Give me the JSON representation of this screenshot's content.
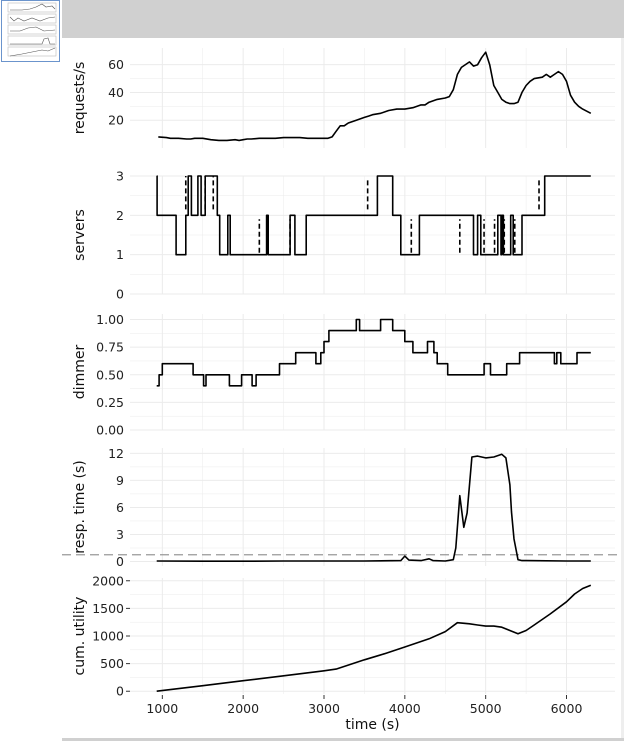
{
  "chart_data": [
    {
      "type": "line",
      "ylabel": "requests/s",
      "xlim": [
        600,
        6600
      ],
      "ylim": [
        0,
        72
      ],
      "yticks": [
        20,
        40,
        60
      ],
      "grid": true,
      "series": [
        {
          "step": false,
          "x": [
            950,
            1050,
            1100,
            1200,
            1300,
            1350,
            1400,
            1500,
            1600,
            1700,
            1800,
            1900,
            1950,
            2000,
            2050,
            2100,
            2200,
            2300,
            2400,
            2500,
            2600,
            2700,
            2800,
            2900,
            3000,
            3050,
            3100,
            3150,
            3200,
            3250,
            3300,
            3400,
            3500,
            3550,
            3600,
            3700,
            3800,
            3900,
            4000,
            4100,
            4200,
            4250,
            4300,
            4400,
            4500,
            4550,
            4600,
            4650,
            4700,
            4800,
            4850,
            4900,
            4950,
            5000,
            5050,
            5100,
            5150,
            5200,
            5250,
            5300,
            5350,
            5400,
            5450,
            5500,
            5550,
            5600,
            5700,
            5750,
            5800,
            5850,
            5900,
            5950,
            6000,
            6050,
            6100,
            6150,
            6200,
            6300
          ],
          "y": [
            8,
            7.5,
            7,
            7,
            6.5,
            6.5,
            7,
            7,
            6,
            5.5,
            5.5,
            6,
            5.5,
            6,
            6.5,
            6.5,
            7,
            7,
            7,
            7.5,
            7.5,
            7.5,
            7,
            7,
            7,
            7,
            8,
            12,
            16,
            16,
            18,
            20,
            22,
            23,
            24,
            25,
            27,
            28,
            28,
            29,
            31,
            31,
            33,
            35,
            36,
            37,
            42,
            53,
            58,
            62,
            59,
            60,
            65,
            69,
            60,
            45,
            40,
            35,
            33,
            32,
            32,
            33,
            40,
            45,
            48,
            50,
            51,
            53,
            51,
            53,
            55,
            53,
            48,
            38,
            33,
            30,
            28,
            25
          ]
        }
      ]
    },
    {
      "type": "line",
      "ylabel": "servers",
      "xlim": [
        600,
        6600
      ],
      "ylim": [
        0,
        3
      ],
      "yticks": [
        0,
        1,
        2,
        3
      ],
      "grid": true,
      "series": [
        {
          "step": true,
          "dash": false,
          "x": [
            930,
            935,
            1090,
            1170,
            1280,
            1290,
            1320,
            1360,
            1440,
            1480,
            1530,
            1680,
            1710,
            1810,
            1840,
            2010,
            2290,
            2310,
            2540,
            2580,
            2640,
            2730,
            2780,
            3620,
            3660,
            3820,
            3850,
            3920,
            3950,
            4150,
            4180,
            4800,
            4850,
            4900,
            4940,
            5100,
            5150,
            5190,
            5200,
            5220,
            5310,
            5340,
            5400,
            5450,
            5700,
            5730,
            6300
          ],
          "y": [
            3,
            2,
            2,
            1,
            1,
            2,
            3,
            2,
            3,
            2,
            3,
            2,
            1,
            2,
            1,
            1,
            2,
            1,
            1,
            2,
            1,
            1,
            2,
            2,
            3,
            3,
            2,
            2,
            1,
            1,
            2,
            2,
            1,
            2,
            1,
            1,
            2,
            1,
            2,
            1,
            2,
            1,
            1,
            2,
            2,
            3,
            3
          ]
        },
        {
          "step": false,
          "dash": true,
          "segments": [
            [
              1290,
              2.15,
              1290,
              3
            ],
            [
              1530,
              2.15,
              1530,
              3
            ],
            [
              1630,
              2.15,
              1630,
              3
            ],
            [
              2200,
              1.05,
              2200,
              1.9
            ],
            [
              2300,
              1.05,
              2300,
              1.9
            ],
            [
              2580,
              1.05,
              2580,
              1.9
            ],
            [
              3540,
              2.15,
              3540,
              2.9
            ],
            [
              4080,
              1.05,
              4080,
              1.9
            ],
            [
              4680,
              1.05,
              4680,
              1.9
            ],
            [
              4980,
              1.05,
              4980,
              1.9
            ],
            [
              5110,
              1.05,
              5110,
              1.9
            ],
            [
              5230,
              1.05,
              5230,
              1.9
            ],
            [
              5360,
              1.05,
              5360,
              1.9
            ],
            [
              5660,
              2.15,
              5660,
              2.9
            ]
          ]
        }
      ]
    },
    {
      "type": "line",
      "ylabel": "dimmer",
      "xlim": [
        600,
        6600
      ],
      "ylim": [
        0,
        1.05
      ],
      "yticks": [
        "0.00",
        "0.25",
        "0.50",
        "0.75",
        "1.00"
      ],
      "grid": true,
      "series": [
        {
          "step": true,
          "x": [
            930,
            960,
            1000,
            1100,
            1380,
            1510,
            1540,
            1800,
            1830,
            1980,
            2110,
            2160,
            2310,
            2450,
            2620,
            2650,
            2900,
            2930,
            2960,
            3000,
            3060,
            3400,
            3440,
            3560,
            3700,
            3730,
            3850,
            3920,
            4000,
            4050,
            4100,
            4240,
            4280,
            4360,
            4400,
            4530,
            4550,
            4940,
            4980,
            5060,
            5260,
            5300,
            5420,
            5730,
            5850,
            5880,
            5930,
            6130,
            6170,
            6200,
            6260,
            6300
          ],
          "y": [
            0.4,
            0.5,
            0.6,
            0.6,
            0.5,
            0.4,
            0.5,
            0.5,
            0.4,
            0.5,
            0.4,
            0.5,
            0.5,
            0.6,
            0.6,
            0.7,
            0.6,
            0.6,
            0.7,
            0.8,
            0.9,
            1.0,
            0.9,
            0.9,
            1.0,
            1.0,
            0.9,
            0.9,
            0.8,
            0.8,
            0.7,
            0.7,
            0.8,
            0.7,
            0.6,
            0.5,
            0.5,
            0.5,
            0.6,
            0.5,
            0.6,
            0.6,
            0.7,
            0.7,
            0.6,
            0.7,
            0.6,
            0.7,
            0.7,
            0.7,
            0.7,
            0.7
          ]
        }
      ]
    },
    {
      "type": "line",
      "ylabel": "resp. time (s)",
      "xlim": [
        600,
        6600
      ],
      "ylim": [
        -0.5,
        12.6
      ],
      "yticks": [
        0,
        3,
        6,
        9,
        12
      ],
      "grid": true,
      "reference_line": 0.75,
      "series": [
        {
          "step": false,
          "x": [
            930,
            1500,
            2000,
            2500,
            3000,
            3500,
            3950,
            4000,
            4050,
            4200,
            4300,
            4350,
            4500,
            4600,
            4630,
            4680,
            4730,
            4770,
            4830,
            4900,
            5000,
            5100,
            5200,
            5250,
            5300,
            5320,
            5350,
            5400,
            5450,
            5500,
            6000,
            6300
          ],
          "y": [
            0.05,
            0.03,
            0.03,
            0.05,
            0.05,
            0.05,
            0.1,
            0.6,
            0.15,
            0.1,
            0.3,
            0.1,
            0.05,
            0.2,
            1.5,
            7.3,
            3.8,
            5.4,
            11.6,
            11.7,
            11.5,
            11.6,
            11.9,
            11.5,
            8.5,
            5.5,
            2.5,
            0.2,
            0.1,
            0.1,
            0.05,
            0.05
          ]
        }
      ]
    },
    {
      "type": "line",
      "ylabel": "cum. utility",
      "xlabel": "time (s)",
      "xlim": [
        600,
        6600
      ],
      "ylim": [
        -50,
        2050
      ],
      "yticks": [
        0,
        500,
        1000,
        1500,
        2000
      ],
      "xticks": [
        1000,
        2000,
        3000,
        4000,
        5000,
        6000
      ],
      "grid": true,
      "series": [
        {
          "step": false,
          "x": [
            930,
            1500,
            2000,
            2500,
            3000,
            3150,
            3500,
            3750,
            4000,
            4300,
            4500,
            4650,
            4800,
            4900,
            5000,
            5100,
            5200,
            5400,
            5500,
            5600,
            5800,
            6000,
            6100,
            6200,
            6300
          ],
          "y": [
            0,
            100,
            190,
            280,
            370,
            400,
            570,
            680,
            800,
            950,
            1080,
            1240,
            1220,
            1200,
            1180,
            1180,
            1160,
            1040,
            1100,
            1200,
            1400,
            1620,
            1760,
            1860,
            1920
          ]
        }
      ]
    }
  ],
  "style": {
    "line_color": "#000000",
    "grid_color": "#ebebeb",
    "reference_line_color": "#999999",
    "topbar_color": "#d0d0d0",
    "thumbnail_border": "#6b94cc"
  }
}
